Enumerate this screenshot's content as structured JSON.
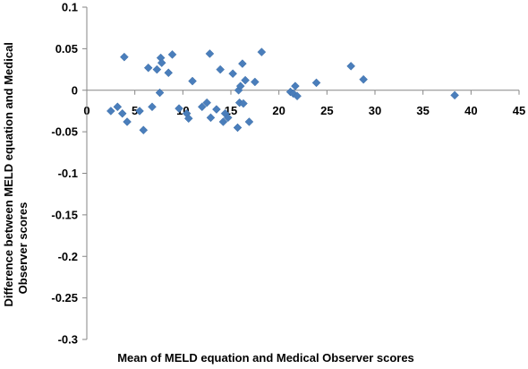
{
  "chart_data": {
    "type": "scatter",
    "xlabel": "Mean of MELD equation and Medical Observer scores",
    "ylabel_lines": [
      "Difference between MELD equation and Medical",
      "Observer scores"
    ],
    "xlim": [
      0,
      45
    ],
    "ylim": [
      -0.3,
      0.1
    ],
    "x_ticks": [
      0,
      5,
      10,
      15,
      20,
      25,
      30,
      35,
      40,
      45
    ],
    "y_ticks": [
      0.1,
      0.05,
      0,
      -0.05,
      -0.1,
      -0.15,
      -0.2,
      -0.25,
      -0.3
    ],
    "y_tick_labels": [
      "0.1",
      "0.05",
      "0",
      "-0.05",
      "-0.1",
      "-0.15",
      "-0.2",
      "-0.25",
      "-0.3"
    ],
    "marker_color": "#4a7ebb",
    "points": [
      {
        "x": 2.5,
        "y": -0.025
      },
      {
        "x": 3.2,
        "y": -0.02
      },
      {
        "x": 3.7,
        "y": -0.028
      },
      {
        "x": 3.9,
        "y": 0.04
      },
      {
        "x": 4.2,
        "y": -0.038
      },
      {
        "x": 5.5,
        "y": -0.025
      },
      {
        "x": 5.9,
        "y": -0.048
      },
      {
        "x": 6.4,
        "y": 0.027
      },
      {
        "x": 6.8,
        "y": -0.02
      },
      {
        "x": 7.3,
        "y": 0.025
      },
      {
        "x": 7.6,
        "y": -0.003
      },
      {
        "x": 7.7,
        "y": 0.039
      },
      {
        "x": 7.8,
        "y": 0.033
      },
      {
        "x": 8.5,
        "y": 0.021
      },
      {
        "x": 8.9,
        "y": 0.043
      },
      {
        "x": 9.6,
        "y": -0.022
      },
      {
        "x": 10.4,
        "y": -0.028
      },
      {
        "x": 10.6,
        "y": -0.034
      },
      {
        "x": 11.0,
        "y": 0.011
      },
      {
        "x": 12.0,
        "y": -0.02
      },
      {
        "x": 12.5,
        "y": -0.015
      },
      {
        "x": 12.8,
        "y": 0.044
      },
      {
        "x": 12.9,
        "y": -0.033
      },
      {
        "x": 13.5,
        "y": -0.023
      },
      {
        "x": 13.9,
        "y": 0.025
      },
      {
        "x": 14.2,
        "y": -0.038
      },
      {
        "x": 14.4,
        "y": -0.028
      },
      {
        "x": 14.7,
        "y": -0.033
      },
      {
        "x": 15.2,
        "y": 0.02
      },
      {
        "x": 15.7,
        "y": -0.045
      },
      {
        "x": 15.8,
        "y": 0.0
      },
      {
        "x": 15.9,
        "y": -0.015
      },
      {
        "x": 16.0,
        "y": 0.005
      },
      {
        "x": 16.2,
        "y": 0.032
      },
      {
        "x": 16.3,
        "y": -0.016
      },
      {
        "x": 16.5,
        "y": 0.012
      },
      {
        "x": 16.9,
        "y": -0.038
      },
      {
        "x": 17.5,
        "y": 0.01
      },
      {
        "x": 18.2,
        "y": 0.046
      },
      {
        "x": 21.2,
        "y": -0.002
      },
      {
        "x": 21.5,
        "y": -0.004
      },
      {
        "x": 21.7,
        "y": 0.005
      },
      {
        "x": 21.9,
        "y": -0.007
      },
      {
        "x": 23.9,
        "y": 0.009
      },
      {
        "x": 27.5,
        "y": 0.029
      },
      {
        "x": 28.8,
        "y": 0.013
      },
      {
        "x": 38.3,
        "y": -0.006
      }
    ]
  }
}
